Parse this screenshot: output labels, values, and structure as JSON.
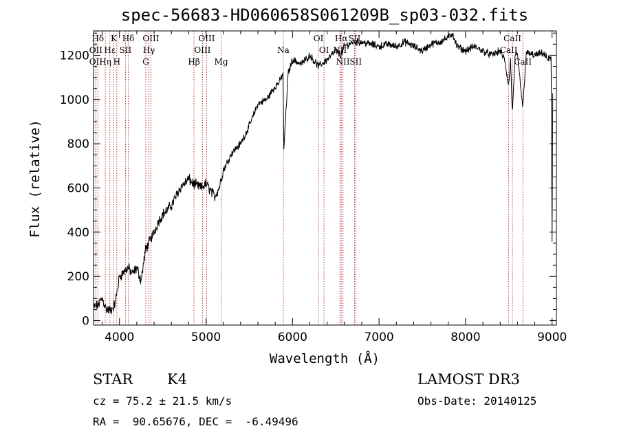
{
  "chart_data": {
    "type": "line",
    "title": "spec-56683-HD060658S061209B_sp03-032.fits",
    "xlabel": "Wavelength (Å)",
    "ylabel": "Flux (relative)",
    "xlim": [
      3700,
      9050
    ],
    "ylim": [
      -20,
      1310
    ],
    "xticks": [
      4000,
      5000,
      6000,
      7000,
      8000,
      9000
    ],
    "yticks": [
      0,
      200,
      400,
      600,
      800,
      1000,
      1200
    ],
    "spectrum_anchors": {
      "x": [
        3700,
        3750,
        3800,
        3850,
        3900,
        3950,
        4000,
        4050,
        4100,
        4150,
        4200,
        4250,
        4300,
        4350,
        4400,
        4450,
        4500,
        4600,
        4700,
        4800,
        4850,
        4900,
        4950,
        5000,
        5100,
        5150,
        5200,
        5300,
        5400,
        5500,
        5600,
        5700,
        5800,
        5850,
        5890,
        5900,
        5950,
        6000,
        6100,
        6200,
        6300,
        6400,
        6500,
        6560,
        6600,
        6700,
        6800,
        6900,
        7000,
        7100,
        7200,
        7300,
        7400,
        7500,
        7600,
        7700,
        7800,
        7850,
        7900,
        8000,
        8100,
        8200,
        8300,
        8400,
        8450,
        8498,
        8520,
        8542,
        8570,
        8600,
        8662,
        8700,
        8800,
        8900,
        8950,
        8990,
        9000,
        9010
      ],
      "y": [
        60,
        70,
        100,
        50,
        45,
        80,
        200,
        220,
        240,
        210,
        240,
        180,
        320,
        360,
        400,
        450,
        480,
        520,
        600,
        640,
        620,
        610,
        600,
        620,
        560,
        600,
        680,
        760,
        800,
        880,
        980,
        1000,
        1060,
        1080,
        1120,
        780,
        1120,
        1180,
        1160,
        1200,
        1150,
        1180,
        1220,
        1200,
        1240,
        1260,
        1260,
        1250,
        1240,
        1250,
        1240,
        1260,
        1240,
        1220,
        1250,
        1260,
        1280,
        1300,
        1240,
        1220,
        1240,
        1220,
        1200,
        1220,
        1180,
        1060,
        1180,
        930,
        1190,
        1200,
        960,
        1210,
        1200,
        1210,
        1180,
        1190,
        350,
        1190
      ]
    },
    "lines": [
      {
        "label": "Hδ",
        "x": 3750,
        "row": 0
      },
      {
        "label": "OII",
        "x": 3727,
        "row": 1
      },
      {
        "label": "OII",
        "x": 3727,
        "row": 2
      },
      {
        "label": "Hη",
        "x": 3836,
        "row": 2
      },
      {
        "label": "Hε",
        "x": 3889,
        "row": 1
      },
      {
        "label": "K",
        "x": 3934,
        "row": 0
      },
      {
        "label": "H",
        "x": 3969,
        "row": 2
      },
      {
        "label": "SII",
        "x": 4069,
        "row": 1
      },
      {
        "label": "Hδ",
        "x": 4102,
        "row": 0
      },
      {
        "label": "OIII",
        "x": 4363,
        "row": 0
      },
      {
        "label": "Hγ",
        "x": 4340,
        "row": 1
      },
      {
        "label": "G",
        "x": 4304,
        "row": 2
      },
      {
        "label": "Hβ",
        "x": 4861,
        "row": 2
      },
      {
        "label": "OIII",
        "x": 4959,
        "row": 1
      },
      {
        "label": "OIII",
        "x": 5007,
        "row": 0
      },
      {
        "label": "Mg",
        "x": 5175,
        "row": 2
      },
      {
        "label": "Na",
        "x": 5894,
        "row": 1
      },
      {
        "label": "OI",
        "x": 6300,
        "row": 0
      },
      {
        "label": "OI",
        "x": 6364,
        "row": 1
      },
      {
        "label": "Hα",
        "x": 6563,
        "row": 0
      },
      {
        "label": "NII",
        "x": 6548,
        "row": 1
      },
      {
        "label": "NII",
        "x": 6583,
        "row": 2
      },
      {
        "label": "SII",
        "x": 6717,
        "row": 0
      },
      {
        "label": "SII",
        "x": 6731,
        "row": 2
      },
      {
        "label": "CaII",
        "x": 8498,
        "row": 1
      },
      {
        "label": "CaII",
        "x": 8542,
        "row": 0
      },
      {
        "label": "CaII",
        "x": 8662,
        "row": 2
      }
    ]
  },
  "info": {
    "object_class": "STAR",
    "subclass": "K4",
    "survey": "LAMOST DR3",
    "redshift": "cz = 75.2 ± 21.5 km/s",
    "obs_date": "Obs-Date: 20140125",
    "coords": "RA =  90.65676, DEC =  -6.49496"
  },
  "colors": {
    "spectrum": "#000000",
    "line_marker": "#b22222",
    "axis": "#000000"
  }
}
